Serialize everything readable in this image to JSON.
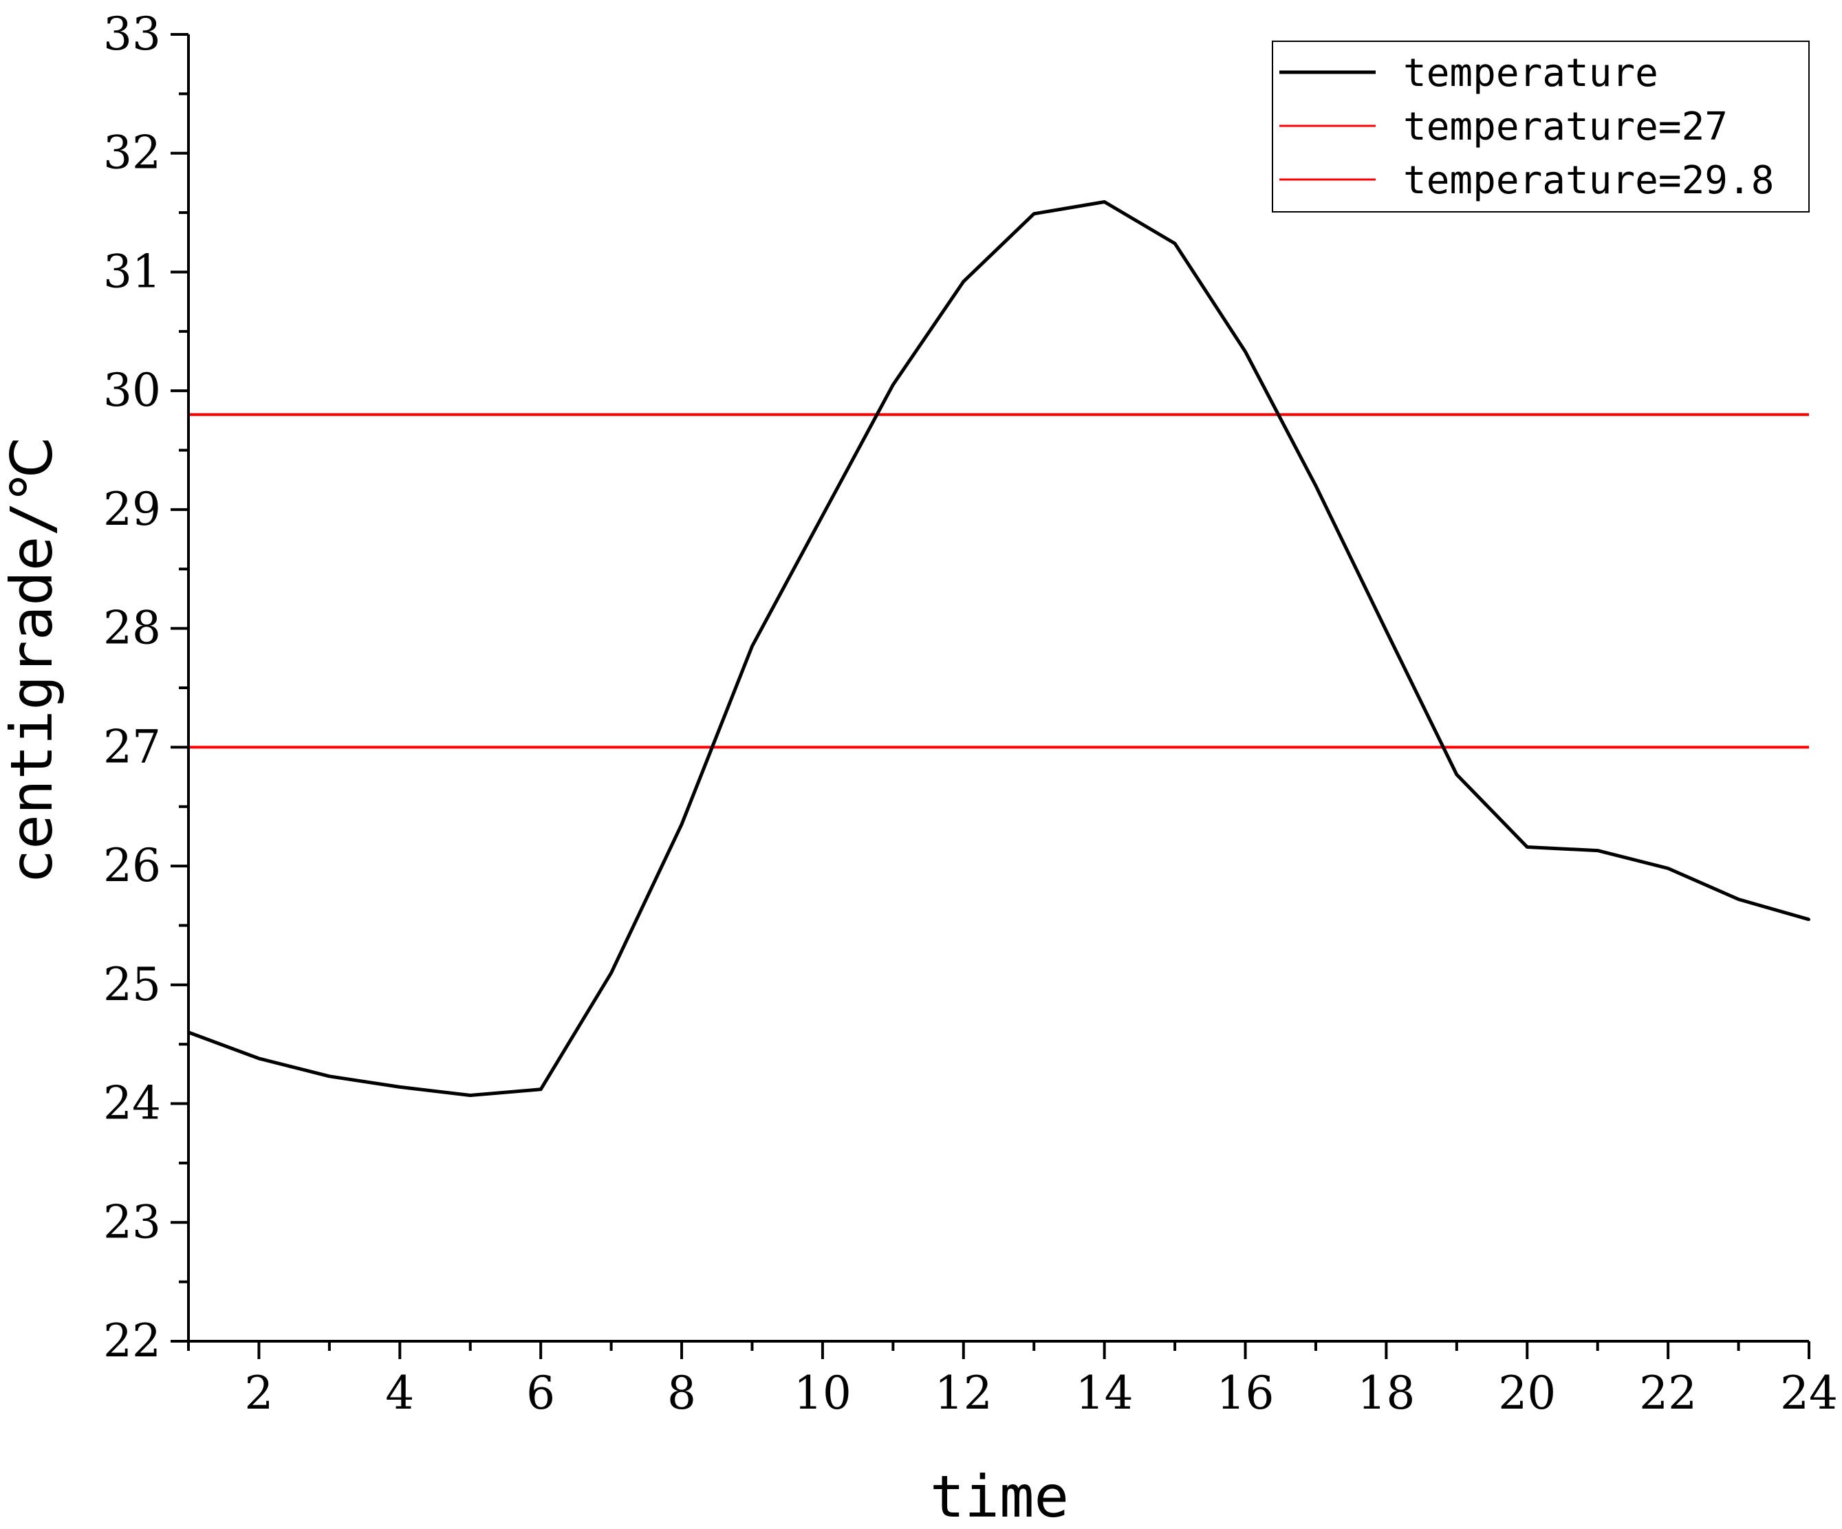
{
  "chart_data": {
    "type": "line",
    "xlabel": "time",
    "ylabel": "centigrade/℃",
    "xlim": [
      1,
      24
    ],
    "ylim": [
      22,
      33
    ],
    "x_ticks": [
      "2",
      "4",
      "6",
      "8",
      "10",
      "12",
      "14",
      "16",
      "18",
      "20",
      "22",
      "24"
    ],
    "y_ticks": [
      "22",
      "23",
      "24",
      "25",
      "26",
      "27",
      "28",
      "29",
      "30",
      "31",
      "32",
      "33"
    ],
    "x": [
      1,
      2,
      3,
      4,
      5,
      6,
      7,
      8,
      9,
      10,
      11,
      12,
      13,
      14,
      15,
      16,
      17,
      18,
      19,
      20,
      21,
      22,
      23,
      24
    ],
    "series": [
      {
        "name": "temperature",
        "color": "#000000",
        "values": [
          24.6,
          24.38,
          24.23,
          24.14,
          24.07,
          24.12,
          25.1,
          26.35,
          27.85,
          28.95,
          30.05,
          30.92,
          31.49,
          31.59,
          31.24,
          30.33,
          29.2,
          27.98,
          26.77,
          26.16,
          26.13,
          25.98,
          25.72,
          25.55
        ]
      },
      {
        "name": "temperature=27",
        "color": "#ff0000",
        "constant": 27
      },
      {
        "name": "temperature=29.8",
        "color": "#ff0000",
        "constant": 29.8
      }
    ],
    "grid": false,
    "legend_position": "top-right"
  }
}
